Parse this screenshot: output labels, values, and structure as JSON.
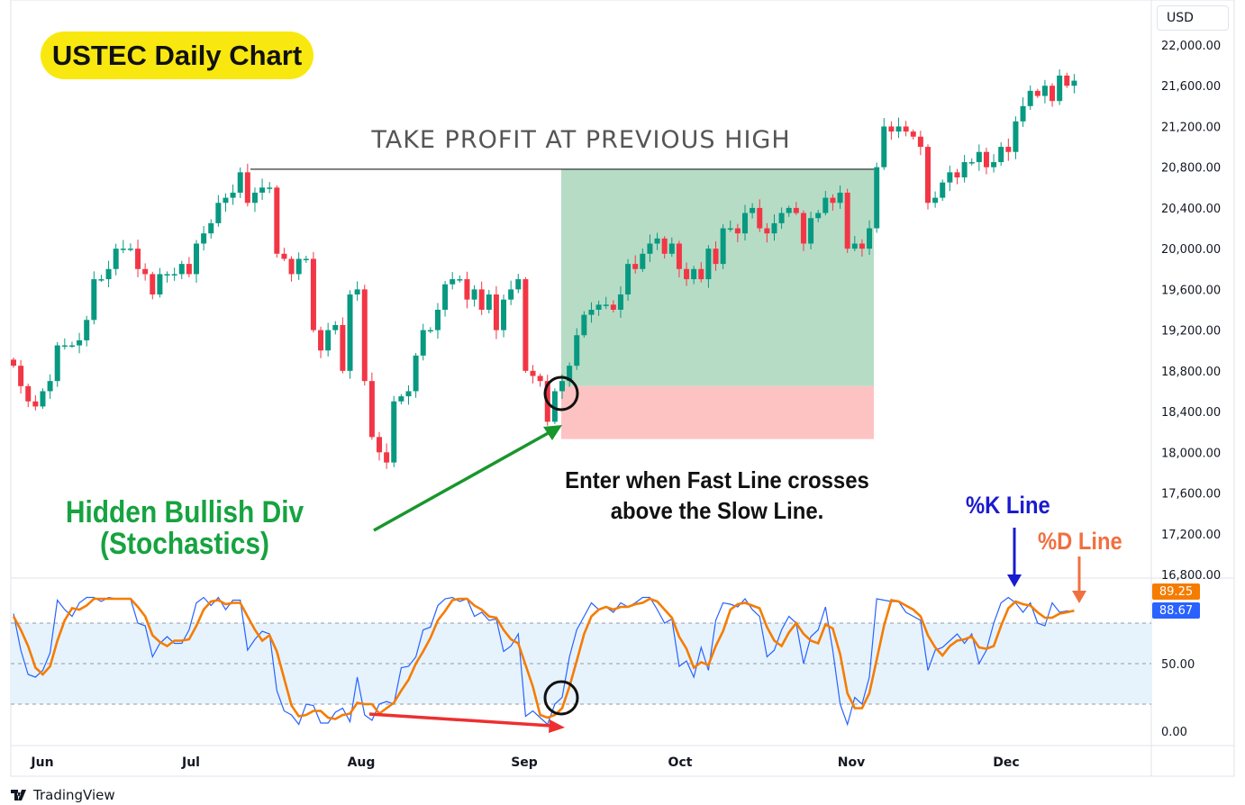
{
  "title": "USTEC Daily Chart",
  "currency": "USD",
  "annotations": {
    "take_profit": "TAKE PROFIT AT PREVIOUS HIGH",
    "enter_line1": "Enter when Fast Line crosses",
    "enter_line2": "above the Slow Line.",
    "divergence_line1": "Hidden Bullish Div",
    "divergence_line2": "(Stochastics)",
    "k_label": "%K Line",
    "d_label": "%D Line"
  },
  "branding": "TradingView",
  "colors": {
    "up": "#089981",
    "down": "#f23645",
    "k_line": "#2962ff",
    "d_line": "#f57c00",
    "profit_zone": "#b7dcc6",
    "loss_zone": "#fdc3c3",
    "divergence_arrow": "#19962c",
    "stoch_arrow": "#ee2f2f",
    "k_label": "#1a1ad0",
    "d_label": "#f07040"
  },
  "chart_data": [
    {
      "type": "candlestick",
      "ylim": [
        16800,
        22000
      ],
      "y_ticks": [
        "22,000.00",
        "21,600.00",
        "21,200.00",
        "20,800.00",
        "20,400.00",
        "20,000.00",
        "19,600.00",
        "19,200.00",
        "18,800.00",
        "18,400.00",
        "18,000.00",
        "17,600.00",
        "17,200.00",
        "16,800.00"
      ],
      "x_ticks": [
        "Jun",
        "Jul",
        "Aug",
        "Sep",
        "Oct",
        "Nov",
        "Dec"
      ],
      "take_profit_level": 20780,
      "entry_level": 18650,
      "stop_level": 18130,
      "close": [
        18850,
        18650,
        18500,
        18450,
        18600,
        18700,
        19050,
        19050,
        19050,
        19100,
        19300,
        19700,
        19700,
        19800,
        20000,
        20000,
        20000,
        19800,
        19750,
        19550,
        19750,
        19750,
        19750,
        19850,
        19750,
        20050,
        20150,
        20250,
        20450,
        20500,
        20550,
        20750,
        20450,
        20550,
        20600,
        20600,
        19950,
        19900,
        19750,
        19900,
        19900,
        19200,
        19000,
        19200,
        19250,
        18800,
        19550,
        19600,
        18700,
        18150,
        18000,
        17900,
        18500,
        18550,
        18600,
        18950,
        19200,
        19200,
        19400,
        19650,
        19700,
        19700,
        19500,
        19600,
        19400,
        19550,
        19200,
        19500,
        19600,
        19700,
        18800,
        18750,
        18700,
        18300,
        18600,
        18700,
        18850,
        19150,
        19350,
        19400,
        19450,
        19450,
        19400,
        19550,
        19850,
        19800,
        19950,
        20050,
        20100,
        19950,
        20050,
        19800,
        19700,
        19800,
        19700,
        20000,
        19850,
        20200,
        20200,
        20150,
        20350,
        20400,
        20200,
        20150,
        20250,
        20350,
        20400,
        20350,
        20050,
        20300,
        20350,
        20500,
        20450,
        20550,
        20000,
        20050,
        20000,
        20200,
        20800,
        21200,
        21150,
        21200,
        21150,
        21100,
        21000,
        20450,
        20500,
        20650,
        20750,
        20700,
        20850,
        20850,
        20950,
        20800,
        20850,
        21000,
        20950,
        21250,
        21400,
        21550,
        21500,
        21600,
        21450,
        21700,
        21600,
        21650
      ]
    },
    {
      "type": "line",
      "indicator": "Stochastic",
      "ylim": [
        0,
        100
      ],
      "y_ticks": [
        "50.00",
        "0.00"
      ],
      "bands": [
        20,
        50,
        80
      ],
      "series": [
        {
          "key": "k",
          "values": [
            87,
            60,
            42,
            40,
            45,
            58,
            97,
            90,
            85,
            95,
            99,
            99,
            96,
            99,
            98,
            98,
            98,
            80,
            78,
            55,
            65,
            70,
            65,
            65,
            75,
            95,
            99,
            93,
            99,
            90,
            97,
            97,
            60,
            68,
            74,
            72,
            30,
            15,
            12,
            5,
            20,
            19,
            6,
            6,
            14,
            17,
            7,
            40,
            12,
            8,
            20,
            22,
            20,
            47,
            48,
            55,
            75,
            77,
            93,
            98,
            99,
            96,
            98,
            85,
            88,
            82,
            83,
            59,
            63,
            72,
            11,
            15,
            10,
            5,
            20,
            25,
            55,
            75,
            85,
            95,
            90,
            92,
            88,
            95,
            92,
            95,
            99,
            99,
            90,
            80,
            83,
            48,
            52,
            40,
            62,
            45,
            82,
            95,
            94,
            92,
            98,
            90,
            85,
            55,
            60,
            75,
            85,
            80,
            50,
            70,
            75,
            92,
            60,
            20,
            5,
            25,
            20,
            40,
            98,
            97,
            96,
            96,
            88,
            85,
            82,
            45,
            60,
            62,
            67,
            72,
            65,
            72,
            50,
            60,
            80,
            95,
            99,
            95,
            88,
            95,
            80,
            78,
            95,
            88,
            89,
            88.67
          ]
        },
        {
          "key": "d",
          "values": [
            85,
            75,
            63,
            47,
            42,
            48,
            67,
            82,
            91,
            90,
            93,
            98,
            98,
            98,
            98,
            98,
            98,
            92,
            85,
            71,
            66,
            63,
            67,
            67,
            68,
            78,
            90,
            96,
            97,
            94,
            95,
            95,
            85,
            75,
            67,
            71,
            59,
            39,
            19,
            11,
            12,
            15,
            15,
            10,
            9,
            12,
            13,
            21,
            20,
            20,
            13,
            17,
            21,
            30,
            38,
            50,
            59,
            69,
            82,
            89,
            97,
            98,
            98,
            93,
            90,
            85,
            84,
            75,
            68,
            65,
            49,
            33,
            12,
            10,
            12,
            17,
            33,
            52,
            72,
            85,
            90,
            92,
            90,
            92,
            92,
            94,
            95,
            98,
            96,
            90,
            84,
            70,
            61,
            47,
            51,
            49,
            63,
            74,
            90,
            94,
            95,
            93,
            91,
            77,
            67,
            63,
            73,
            80,
            72,
            67,
            65,
            79,
            76,
            57,
            28,
            17,
            17,
            28,
            53,
            78,
            97,
            96,
            93,
            90,
            85,
            71,
            62,
            56,
            63,
            67,
            68,
            70,
            62,
            61,
            63,
            78,
            91,
            96,
            94,
            93,
            88,
            84,
            84,
            87,
            88,
            89.25
          ]
        }
      ],
      "last_d": "89.25",
      "last_k": "88.67"
    }
  ]
}
